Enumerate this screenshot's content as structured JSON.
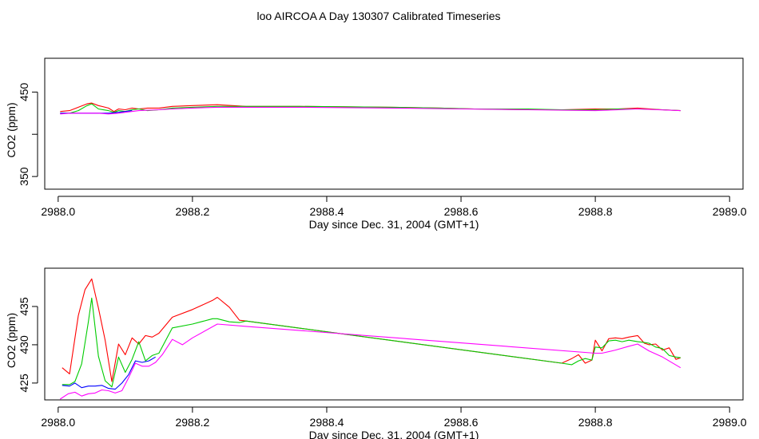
{
  "title": "loo AIRCOA A  Day 130307  Calibrated Timeseries",
  "chart_data": [
    {
      "type": "line",
      "xlabel": "Day since Dec. 31, 2004 (GMT+1)",
      "ylabel": "CO2 (ppm)",
      "xlim": [
        2987.98,
        2989.02
      ],
      "ylim": [
        335,
        490
      ],
      "xticks": [
        2988.0,
        2988.2,
        2988.4,
        2988.6,
        2988.8,
        2989.0
      ],
      "xtick_labels": [
        "2988.0",
        "2988.2",
        "2988.4",
        "2988.6",
        "2988.8",
        "2989.0"
      ],
      "yticks": [
        350,
        400,
        450
      ],
      "ytick_labels": [
        "350",
        "",
        "450"
      ],
      "grid": false,
      "series": [
        {
          "color": "#ff0000",
          "x": [
            2988.003,
            2988.017,
            2988.03,
            2988.043,
            2988.05,
            2988.06,
            2988.075,
            2988.083,
            2988.09,
            2988.1,
            2988.11,
            2988.12,
            2988.133,
            2988.15,
            2988.17,
            2988.2,
            2988.237,
            2988.26,
            2988.28,
            2988.36,
            2988.5,
            2988.57,
            2988.62,
            2988.7,
            2988.75,
            2988.8,
            2988.833,
            2988.863,
            2988.9,
            2988.927
          ],
          "y": [
            427,
            428,
            432,
            436,
            437,
            434,
            431,
            427,
            430,
            429,
            431,
            430,
            431,
            431,
            433,
            434,
            435,
            434,
            433,
            433,
            432,
            431,
            430,
            429,
            429,
            430,
            430,
            431,
            429,
            428
          ]
        },
        {
          "color": "#00cc00",
          "x": [
            2988.003,
            2988.017,
            2988.03,
            2988.043,
            2988.05,
            2988.06,
            2988.075,
            2988.083,
            2988.09,
            2988.1,
            2988.11,
            2988.12,
            2988.133,
            2988.15,
            2988.17,
            2988.2,
            2988.237,
            2988.26,
            2988.28,
            2988.36,
            2988.5,
            2988.57,
            2988.62,
            2988.7,
            2988.75,
            2988.8,
            2988.833,
            2988.863,
            2988.9,
            2988.927
          ],
          "y": [
            425,
            425,
            428,
            434,
            436,
            430,
            428,
            426,
            428,
            427,
            429,
            430,
            428,
            429,
            431,
            432,
            433,
            433,
            433,
            433,
            432,
            431,
            430,
            430,
            429,
            429,
            430,
            430,
            429,
            428
          ]
        },
        {
          "color": "#0000ff",
          "x": [
            2988.003,
            2988.017,
            2988.03,
            2988.043,
            2988.06,
            2988.075,
            2988.09,
            2988.1,
            2988.11
          ],
          "y": [
            425,
            425,
            425,
            425,
            425,
            425,
            426,
            427,
            428
          ]
        },
        {
          "color": "#ff00ff",
          "x": [
            2988.003,
            2988.017,
            2988.03,
            2988.043,
            2988.06,
            2988.075,
            2988.09,
            2988.1,
            2988.12,
            2988.15,
            2988.17,
            2988.2,
            2988.237,
            2988.28,
            2988.36,
            2988.5,
            2988.6,
            2988.7,
            2988.8,
            2988.863,
            2988.927
          ],
          "y": [
            424,
            425,
            425,
            425,
            425,
            424,
            425,
            426,
            428,
            429,
            430,
            431,
            432,
            432,
            432,
            431,
            430,
            429,
            428,
            430,
            428
          ]
        }
      ]
    },
    {
      "type": "line",
      "xlabel": "Day since Dec. 31, 2004 (GMT+1)",
      "ylabel": "CO2 (ppm)",
      "xlim": [
        2987.98,
        2989.02
      ],
      "ylim": [
        422.8,
        440.0
      ],
      "xticks": [
        2988.0,
        2988.2,
        2988.4,
        2988.6,
        2988.8,
        2989.0
      ],
      "xtick_labels": [
        "2988.0",
        "2988.2",
        "2988.4",
        "2988.6",
        "2988.8",
        "2989.0"
      ],
      "yticks": [
        425,
        430,
        435
      ],
      "ytick_labels": [
        "425",
        "430",
        "435"
      ],
      "grid": false,
      "series": [
        {
          "color": "#ff0000",
          "x": [
            2988.006,
            2988.017,
            2988.03,
            2988.04,
            2988.05,
            2988.06,
            2988.07,
            2988.08,
            2988.09,
            2988.1,
            2988.11,
            2988.12,
            2988.13,
            2988.14,
            2988.15,
            2988.17,
            2988.2,
            2988.23,
            2988.237,
            2988.255,
            2988.27,
            2988.28,
            2988.75,
            2988.765,
            2988.775,
            2988.785,
            2988.795,
            2988.8,
            2988.81,
            2988.82,
            2988.83,
            2988.84,
            2988.85,
            2988.863,
            2988.873,
            2988.88,
            2988.89,
            2988.9,
            2988.91,
            2988.92,
            2988.927
          ],
          "y": [
            427.0,
            426.2,
            433.8,
            437.2,
            438.6,
            434.8,
            430.6,
            425.2,
            430.1,
            428.7,
            430.9,
            430.1,
            431.2,
            431.0,
            431.5,
            433.6,
            434.6,
            435.8,
            436.2,
            434.9,
            433.2,
            433.1,
            427.6,
            428.2,
            428.7,
            427.6,
            428.0,
            430.6,
            429.2,
            430.8,
            430.9,
            430.8,
            431.0,
            431.2,
            430.2,
            430.0,
            430.1,
            429.3,
            429.6,
            428.1,
            428.3
          ],
          "stops": [
            27
          ]
        },
        {
          "color": "#00cc00",
          "x": [
            2988.006,
            2988.017,
            2988.025,
            2988.035,
            2988.045,
            2988.05,
            2988.06,
            2988.07,
            2988.08,
            2988.09,
            2988.1,
            2988.11,
            2988.12,
            2988.13,
            2988.14,
            2988.15,
            2988.17,
            2988.2,
            2988.23,
            2988.237,
            2988.255,
            2988.27,
            2988.28,
            2988.75,
            2988.765,
            2988.775,
            2988.785,
            2988.795,
            2988.8,
            2988.81,
            2988.82,
            2988.83,
            2988.84,
            2988.85,
            2988.863,
            2988.873,
            2988.88,
            2988.89,
            2988.9,
            2988.91,
            2988.92,
            2988.927
          ],
          "y": [
            424.8,
            424.8,
            425.2,
            427.5,
            433.0,
            436.1,
            428.5,
            425.3,
            424.5,
            428.4,
            426.4,
            428.1,
            430.4,
            427.9,
            428.6,
            428.9,
            432.2,
            432.7,
            433.4,
            433.4,
            433.0,
            432.9,
            433.1,
            427.6,
            427.4,
            427.9,
            428.2,
            428.0,
            429.7,
            429.6,
            430.5,
            430.6,
            430.4,
            430.6,
            430.4,
            430.3,
            430.2,
            429.7,
            429.5,
            428.6,
            428.4,
            428.3
          ]
        },
        {
          "color": "#0000ff",
          "x": [
            2988.006,
            2988.017,
            2988.025,
            2988.035,
            2988.045,
            2988.055,
            2988.065,
            2988.075,
            2988.085,
            2988.095,
            2988.105,
            2988.115,
            2988.125,
            2988.135,
            2988.145
          ],
          "y": [
            424.7,
            424.6,
            425.0,
            424.4,
            424.6,
            424.6,
            424.7,
            424.3,
            424.2,
            425.0,
            426.1,
            427.9,
            427.7,
            427.9,
            428.4
          ]
        },
        {
          "color": "#ff00ff",
          "x": [
            2988.003,
            2988.015,
            2988.025,
            2988.035,
            2988.045,
            2988.055,
            2988.065,
            2988.075,
            2988.085,
            2988.095,
            2988.105,
            2988.115,
            2988.125,
            2988.135,
            2988.145,
            2988.155,
            2988.17,
            2988.185,
            2988.2,
            2988.237,
            2988.28,
            2988.8,
            2988.81,
            2988.83,
            2988.85,
            2988.863,
            2988.88,
            2988.9,
            2988.927
          ],
          "y": [
            422.9,
            423.6,
            423.8,
            423.3,
            423.6,
            423.7,
            424.1,
            424.0,
            423.7,
            424.0,
            425.7,
            427.6,
            427.2,
            427.2,
            427.7,
            428.7,
            430.7,
            430.0,
            430.9,
            432.7,
            432.4,
            428.9,
            428.9,
            429.3,
            429.8,
            430.1,
            429.2,
            428.4,
            427.0
          ]
        }
      ]
    }
  ]
}
